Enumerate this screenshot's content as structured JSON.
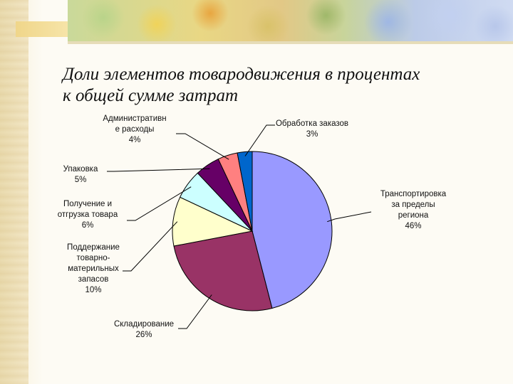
{
  "slide": {
    "title_lines": [
      "Доли элементов товародвижения в процентах",
      "к  общей сумме затрат"
    ]
  },
  "chart_data": {
    "type": "pie",
    "title": "Доли элементов товародвижения в процентах к  общей сумме затрат",
    "unit": "%",
    "start_angle_deg": 0,
    "direction": "clockwise",
    "slices": [
      {
        "label_lines": [
          "Транспортировка",
          "за пределы",
          "региона"
        ],
        "value": 46,
        "value_text": "46%",
        "color": "#9999ff"
      },
      {
        "label_lines": [
          "Складирование"
        ],
        "value": 26,
        "value_text": "26%",
        "color": "#993366"
      },
      {
        "label_lines": [
          "Поддержание",
          "товарно-",
          "материльных",
          "запасов"
        ],
        "value": 10,
        "value_text": "10%",
        "color": "#ffffcc"
      },
      {
        "label_lines": [
          "Получение и",
          "отгрузка товара"
        ],
        "value": 6,
        "value_text": "6%",
        "color": "#ccffff"
      },
      {
        "label_lines": [
          "Упаковка"
        ],
        "value": 5,
        "value_text": "5%",
        "color": "#660066"
      },
      {
        "label_lines": [
          "Административн",
          "е расходы"
        ],
        "value": 4,
        "value_text": "4%",
        "color": "#ff8080"
      },
      {
        "label_lines": [
          "Обработка заказов"
        ],
        "value": 3,
        "value_text": "3%",
        "color": "#0066cc"
      }
    ]
  }
}
